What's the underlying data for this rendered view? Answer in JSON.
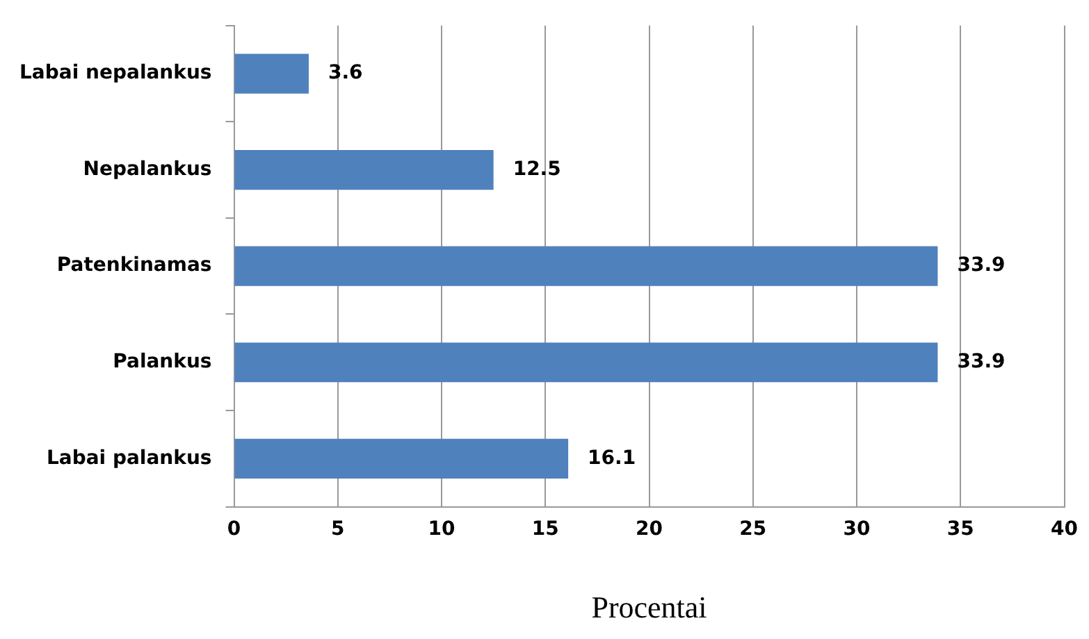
{
  "chart_data": {
    "type": "bar",
    "orientation": "horizontal",
    "xlabel": "Procentai",
    "categories": [
      "Labai nepalankus",
      "Nepalankus",
      "Patenkinamas",
      "Palankus",
      "Labai palankus"
    ],
    "values": [
      3.6,
      12.5,
      33.9,
      33.9,
      16.1
    ],
    "color": "#4f81bd",
    "xlim": [
      0,
      40
    ],
    "xticks": [
      0,
      5,
      10,
      15,
      20,
      25,
      30,
      35,
      40
    ],
    "grid": "x",
    "data_labels": true,
    "legend": false
  }
}
